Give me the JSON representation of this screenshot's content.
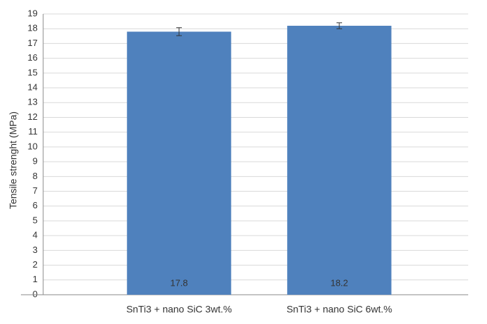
{
  "chart_data": {
    "type": "bar",
    "y_label": "Tensile strenght (MPa)",
    "categories": [
      "SnTi3 + nano SiC 3wt.%",
      "SnTi3 + nano SiC 6wt.%"
    ],
    "values": [
      17.8,
      18.2
    ],
    "errors": [
      0.27,
      0.2
    ],
    "color": "#4f81bd",
    "ylim": [
      0,
      19
    ],
    "yticks": [
      0,
      1,
      2,
      3,
      4,
      5,
      6,
      7,
      8,
      9,
      10,
      11,
      12,
      13,
      14,
      15,
      16,
      17,
      18,
      19
    ],
    "grid": true
  }
}
